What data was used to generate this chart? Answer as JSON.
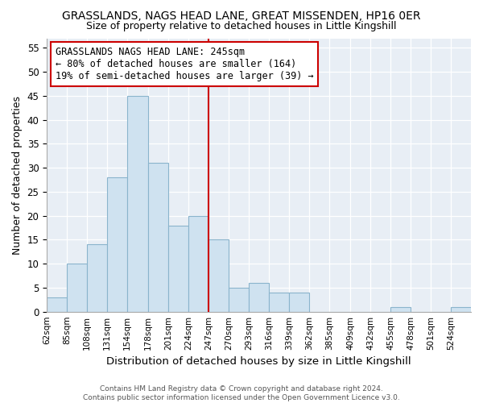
{
  "title1": "GRASSLANDS, NAGS HEAD LANE, GREAT MISSENDEN, HP16 0ER",
  "title2": "Size of property relative to detached houses in Little Kingshill",
  "xlabel": "Distribution of detached houses by size in Little Kingshill",
  "ylabel": "Number of detached properties",
  "bin_labels": [
    "62sqm",
    "85sqm",
    "108sqm",
    "131sqm",
    "154sqm",
    "178sqm",
    "201sqm",
    "224sqm",
    "247sqm",
    "270sqm",
    "293sqm",
    "316sqm",
    "339sqm",
    "362sqm",
    "385sqm",
    "409sqm",
    "432sqm",
    "455sqm",
    "478sqm",
    "501sqm",
    "524sqm"
  ],
  "bin_edges": [
    62,
    85,
    108,
    131,
    154,
    178,
    201,
    224,
    247,
    270,
    293,
    316,
    339,
    362,
    385,
    409,
    432,
    455,
    478,
    501,
    524,
    547
  ],
  "bar_counts": [
    3,
    10,
    14,
    28,
    45,
    31,
    18,
    20,
    15,
    5,
    6,
    4,
    4,
    0,
    0,
    0,
    0,
    1,
    0,
    0,
    1
  ],
  "bar_color": "#cfe2f0",
  "bar_edge_color": "#8ab4cc",
  "vline_x": 247,
  "vline_color": "#cc0000",
  "annotation_line0": "GRASSLANDS NAGS HEAD LANE: 245sqm",
  "annotation_line1": "← 80% of detached houses are smaller (164)",
  "annotation_line2": "19% of semi-detached houses are larger (39) →",
  "ylim": [
    0,
    57
  ],
  "yticks": [
    0,
    5,
    10,
    15,
    20,
    25,
    30,
    35,
    40,
    45,
    50,
    55
  ],
  "bg_color": "#e8eef5",
  "footer1": "Contains HM Land Registry data © Crown copyright and database right 2024.",
  "footer2": "Contains public sector information licensed under the Open Government Licence v3.0."
}
